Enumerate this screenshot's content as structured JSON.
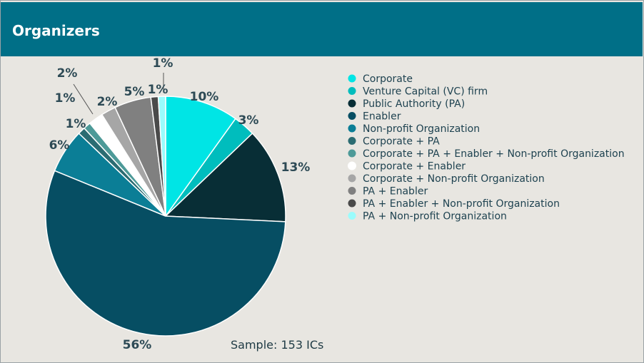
{
  "header": {
    "title": "Organizers"
  },
  "chart_data": {
    "type": "pie",
    "title": "",
    "slices": [
      {
        "label": "Corporate",
        "value": 10,
        "display": "10%",
        "color": "#00e5e5"
      },
      {
        "label": "Venture Capital (VC) firm",
        "value": 3,
        "display": "3%",
        "color": "#00bdbd"
      },
      {
        "label": "Public Authority (PA)",
        "value": 13,
        "display": "13%",
        "color": "#082e36"
      },
      {
        "label": " Enabler",
        "value": 56,
        "display": "56%",
        "color": "#064e63"
      },
      {
        "label": "Non-profit Organization",
        "value": 6,
        "display": "6%",
        "color": "#0b7e96"
      },
      {
        "label": "Corporate + PA",
        "value": 1,
        "display": "1%",
        "color": "#2b6c72"
      },
      {
        "label": "Corporate + PA + Enabler + Non-profit Organization",
        "value": 1,
        "display": "1%",
        "color": "#4d9a98"
      },
      {
        "label": "Corporate + Enabler",
        "value": 2,
        "display": "2%",
        "color": "#ffffff"
      },
      {
        "label": "Corporate + Non-profit Organization",
        "value": 2,
        "display": "2%",
        "color": "#a6a6a6"
      },
      {
        "label": "PA + Enabler",
        "value": 5,
        "display": "5%",
        "color": "#808080"
      },
      {
        "label": "PA + Enabler + Non-profit Organization",
        "value": 1,
        "display": "1%",
        "color": "#4a4a4a"
      },
      {
        "label": "PA + Non-profit Organization",
        "value": 1,
        "display": "1%",
        "color": "#9afcfc"
      }
    ],
    "legend_position": "right",
    "note": "Sample: 153 ICs"
  }
}
